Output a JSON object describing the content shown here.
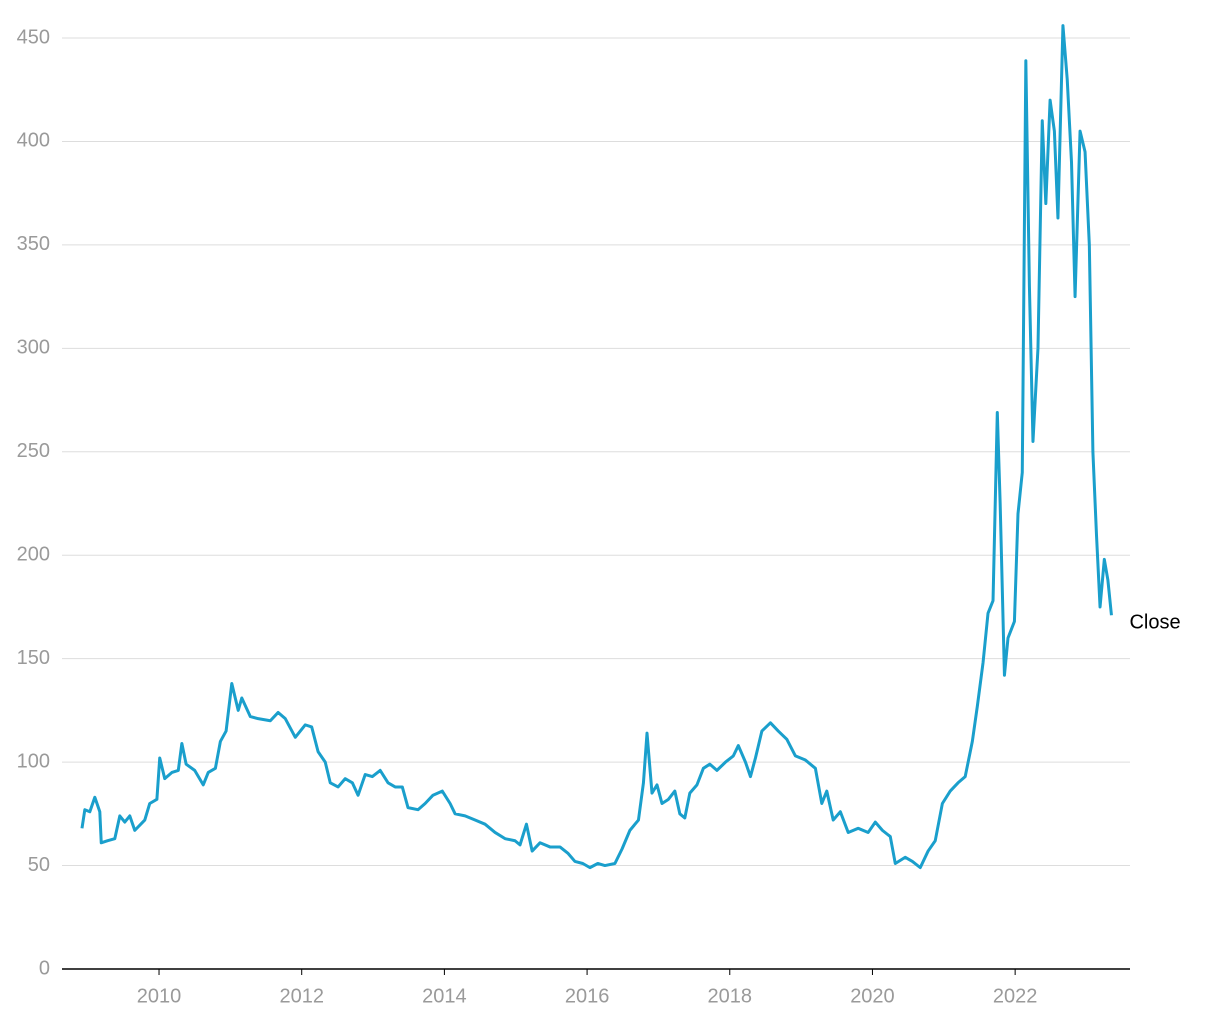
{
  "chart_data": {
    "type": "line",
    "x": [
      2008.92,
      2008.96,
      2009.03,
      2009.1,
      2009.17,
      2009.19,
      2009.28,
      2009.38,
      2009.45,
      2009.52,
      2009.59,
      2009.66,
      2009.8,
      2009.87,
      2009.97,
      2010.01,
      2010.08,
      2010.18,
      2010.27,
      2010.32,
      2010.38,
      2010.5,
      2010.62,
      2010.69,
      2010.79,
      2010.86,
      2010.94,
      2011.02,
      2011.11,
      2011.16,
      2011.28,
      2011.39,
      2011.56,
      2011.67,
      2011.77,
      2011.91,
      2012.05,
      2012.14,
      2012.23,
      2012.33,
      2012.4,
      2012.51,
      2012.61,
      2012.71,
      2012.79,
      2012.89,
      2012.99,
      2013.1,
      2013.21,
      2013.31,
      2013.41,
      2013.49,
      2013.63,
      2013.73,
      2013.84,
      2013.97,
      2014.08,
      2014.15,
      2014.29,
      2014.43,
      2014.57,
      2014.71,
      2014.85,
      2014.99,
      2015.06,
      2015.15,
      2015.23,
      2015.34,
      2015.48,
      2015.62,
      2015.73,
      2015.83,
      2015.94,
      2016.04,
      2016.15,
      2016.25,
      2016.39,
      2016.49,
      2016.6,
      2016.72,
      2016.79,
      2016.84,
      2016.91,
      2016.98,
      2017.05,
      2017.14,
      2017.23,
      2017.3,
      2017.37,
      2017.44,
      2017.54,
      2017.63,
      2017.72,
      2017.82,
      2017.94,
      2018.05,
      2018.12,
      2018.22,
      2018.29,
      2018.36,
      2018.45,
      2018.57,
      2018.68,
      2018.8,
      2018.92,
      2019.06,
      2019.2,
      2019.29,
      2019.36,
      2019.45,
      2019.55,
      2019.66,
      2019.8,
      2019.94,
      2020.04,
      2020.14,
      2020.25,
      2020.32,
      2020.46,
      2020.56,
      2020.67,
      2020.78,
      2020.88,
      2020.98,
      2021.09,
      2021.2,
      2021.3,
      2021.4,
      2021.47,
      2021.55,
      2021.62,
      2021.69,
      2021.75,
      2021.79,
      2021.85,
      2021.9,
      2021.99,
      2022.04,
      2022.1,
      2022.15,
      2022.2,
      2022.25,
      2022.32,
      2022.38,
      2022.43,
      2022.49,
      2022.55,
      2022.6,
      2022.67,
      2022.73,
      2022.79,
      2022.84,
      2022.91,
      2022.98,
      2023.04,
      2023.09,
      2023.14,
      2023.19,
      2023.25,
      2023.3,
      2023.35
    ],
    "series": [
      {
        "name": "Close",
        "color": "#1a9fcc",
        "values": [
          68,
          77,
          76,
          83,
          76,
          61,
          62,
          63,
          74,
          71,
          74,
          67,
          72,
          80,
          82,
          102,
          92,
          95,
          96,
          109,
          99,
          96,
          89,
          95,
          97,
          110,
          115,
          138,
          125,
          131,
          122,
          121,
          120,
          124,
          121,
          112,
          118,
          117,
          105,
          100,
          90,
          88,
          92,
          90,
          84,
          94,
          93,
          96,
          90,
          88,
          88,
          78,
          77,
          80,
          84,
          86,
          80,
          75,
          74,
          72,
          70,
          66,
          63,
          62,
          60,
          70,
          57,
          61,
          59,
          59,
          56,
          52,
          51,
          49,
          51,
          50,
          51,
          58,
          67,
          72,
          90,
          114,
          85,
          89,
          80,
          82,
          86,
          75,
          73,
          85,
          89,
          97,
          99,
          96,
          100,
          103,
          108,
          100,
          93,
          102,
          115,
          119,
          115,
          111,
          103,
          101,
          97,
          80,
          86,
          72,
          76,
          66,
          68,
          66,
          71,
          67,
          64,
          51,
          54,
          52,
          49,
          57,
          62,
          80,
          86,
          90,
          93,
          110,
          127,
          148,
          172,
          178,
          269,
          225,
          142,
          160,
          168,
          220,
          240,
          439,
          330,
          255,
          300,
          410,
          370,
          420,
          405,
          363,
          456,
          430,
          390,
          325,
          405,
          395,
          350,
          250,
          210,
          175,
          198,
          188,
          171
        ]
      }
    ],
    "xlim": [
      2008.64,
      2023.61
    ],
    "ylim": [
      0,
      450
    ],
    "xticks": [
      2010,
      2012,
      2014,
      2016,
      2018,
      2020,
      2022
    ],
    "yticks": [
      0,
      50,
      100,
      150,
      200,
      250,
      300,
      350,
      400,
      450
    ],
    "grid": true
  }
}
